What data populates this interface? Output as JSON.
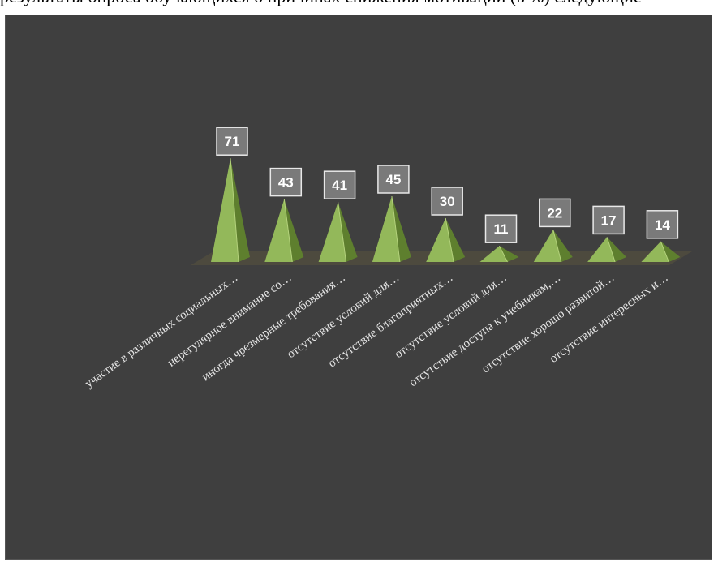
{
  "page": {
    "top_text": "результаты опроса обучающихся о причинах снижения мотивации (в %) следующие"
  },
  "chart_data": {
    "type": "bar",
    "style": "3d-pyramid",
    "title": "",
    "xlabel": "",
    "ylabel": "",
    "ylim": [
      0,
      80
    ],
    "grid": false,
    "legend": "none",
    "categories": [
      "участие в различных социальных…",
      "нерегулярное внимание со…",
      "иногда чрезмерные требования…",
      "отсутствие условий для…",
      "отсутствие благоприятных…",
      "отсутствие условий для…",
      "отсутствие доступа к учебникам,…",
      "отсутствие хорошо развитой…",
      "отсутствие интересных и…"
    ],
    "values": [
      71,
      43,
      41,
      45,
      30,
      11,
      22,
      17,
      14
    ],
    "colors": {
      "background": "#3f3f3f",
      "pyramid_light": "#93b85a",
      "pyramid_dark": "#5e7f2e",
      "floor": "#4d4a3e",
      "label_box": "#7a7a7a",
      "label_border": "#e8e8e8"
    }
  }
}
